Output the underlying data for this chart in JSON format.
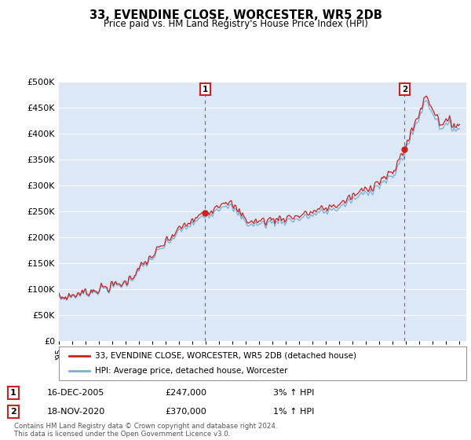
{
  "title": "33, EVENDINE CLOSE, WORCESTER, WR5 2DB",
  "subtitle": "Price paid vs. HM Land Registry's House Price Index (HPI)",
  "ylim": [
    0,
    500000
  ],
  "yticks": [
    0,
    50000,
    100000,
    150000,
    200000,
    250000,
    300000,
    350000,
    400000,
    450000,
    500000
  ],
  "background_color": "#ffffff",
  "plot_bg_color": "#dce8f5",
  "grid_color": "#ffffff",
  "hpi_line_color": "#7ab0d4",
  "sale_line_color": "#cc2222",
  "sale_marker_color": "#cc2222",
  "dashed_line_color": "#cc3333",
  "annotation_box_color": "#cc2222",
  "sale1_x": 2005.96,
  "sale1_y": 247000,
  "sale1_label": "1",
  "sale1_date": "16-DEC-2005",
  "sale1_price": "£247,000",
  "sale1_hpi": "3% ↑ HPI",
  "sale2_x": 2020.88,
  "sale2_y": 370000,
  "sale2_label": "2",
  "sale2_date": "18-NOV-2020",
  "sale2_price": "£370,000",
  "sale2_hpi": "1% ↑ HPI",
  "legend_label1": "33, EVENDINE CLOSE, WORCESTER, WR5 2DB (detached house)",
  "legend_label2": "HPI: Average price, detached house, Worcester",
  "footer": "Contains HM Land Registry data © Crown copyright and database right 2024.\nThis data is licensed under the Open Government Licence v3.0.",
  "xmin": 1995.0,
  "xmax": 2025.5
}
